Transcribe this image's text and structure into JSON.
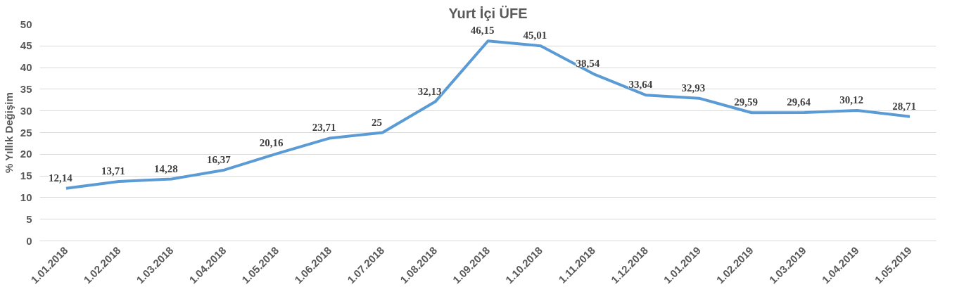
{
  "chart_data": {
    "type": "line",
    "title": "Yurt İçi ÜFE",
    "ylabel": "% Yıllık Değişim",
    "categories": [
      "1.01.2018",
      "1.02.2018",
      "1.03.2018",
      "1.04.2018",
      "1.05.2018",
      "1.06.2018",
      "1.07.2018",
      "1.08.2018",
      "1.09.2018",
      "1.10.2018",
      "1.11.2018",
      "1.12.2018",
      "1.01.2019",
      "1.02.2019",
      "1.03.2019",
      "1.04.2019",
      "1.05.2019"
    ],
    "values": [
      12.14,
      13.71,
      14.28,
      16.37,
      20.16,
      23.71,
      25,
      32.13,
      46.15,
      45.01,
      38.54,
      33.64,
      32.93,
      29.59,
      29.64,
      30.12,
      28.71
    ],
    "value_labels": [
      "12,14",
      "13,71",
      "14,28",
      "16,37",
      "20,16",
      "23,71",
      "25",
      "32,13",
      "46,15",
      "45,01",
      "38,54",
      "33,64",
      "32,93",
      "29,59",
      "29,64",
      "30,12",
      "28,71"
    ],
    "color": "#5b9bd5",
    "ylim": [
      0,
      50
    ],
    "yticks": [
      0,
      5,
      10,
      15,
      20,
      25,
      30,
      35,
      40,
      45,
      50
    ],
    "grid": "y",
    "line_style": "solid"
  }
}
